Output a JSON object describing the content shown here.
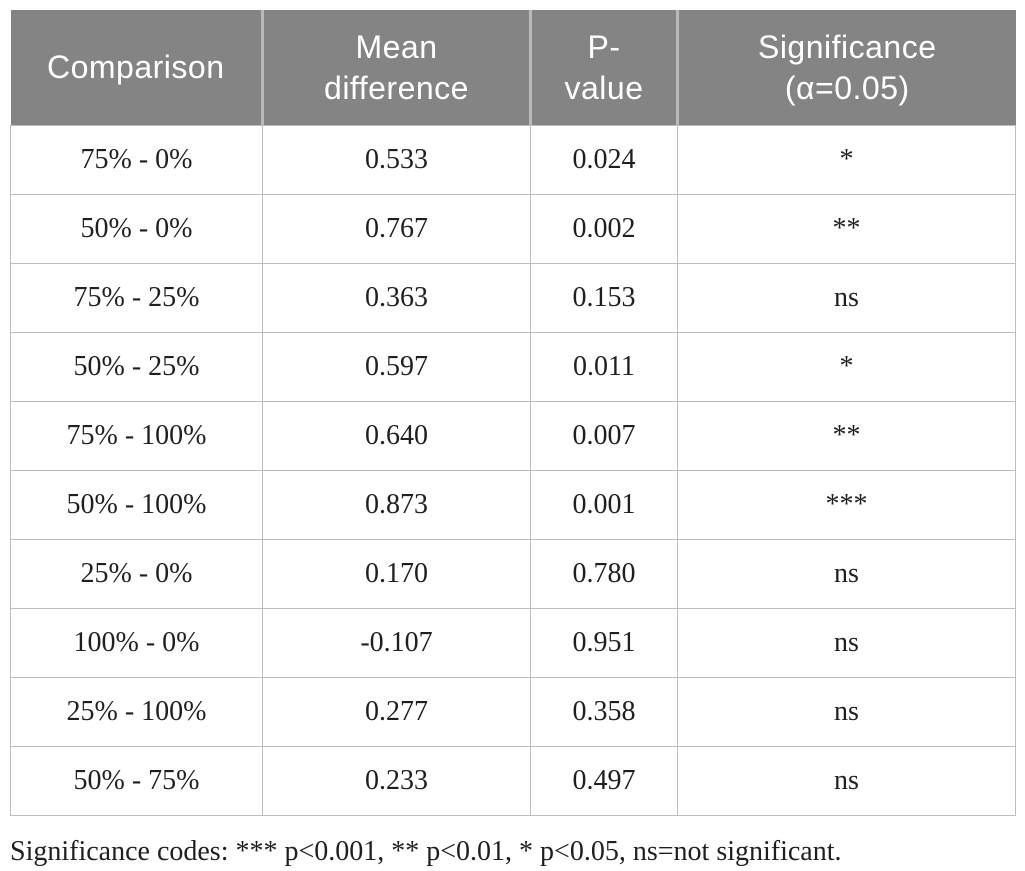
{
  "table": {
    "headers": [
      "Comparison",
      "Mean\ndifference",
      "P-\nvalue",
      "Significance\n(α=0.05)"
    ],
    "rows": [
      [
        "75% - 0%",
        "0.533",
        "0.024",
        "*"
      ],
      [
        "50% - 0%",
        "0.767",
        "0.002",
        "**"
      ],
      [
        "75% - 25%",
        "0.363",
        "0.153",
        "ns"
      ],
      [
        "50% - 25%",
        "0.597",
        "0.011",
        "*"
      ],
      [
        "75% - 100%",
        "0.640",
        "0.007",
        "**"
      ],
      [
        "50% - 100%",
        "0.873",
        "0.001",
        "***"
      ],
      [
        "25% - 0%",
        "0.170",
        "0.780",
        "ns"
      ],
      [
        "100% - 0%",
        "-0.107",
        "0.951",
        "ns"
      ],
      [
        "25% - 100%",
        "0.277",
        "0.358",
        "ns"
      ],
      [
        "50% - 75%",
        "0.233",
        "0.497",
        "ns"
      ]
    ],
    "footnote": "Significance codes: *** p<0.001, ** p<0.01, * p<0.05, ns=not significant."
  },
  "colors": {
    "header_background": "#848484",
    "header_text": "#ffffff",
    "body_text": "#1f1f1f",
    "grid_border": "#bdbdbd",
    "header_divider": "#b9b9b9"
  }
}
